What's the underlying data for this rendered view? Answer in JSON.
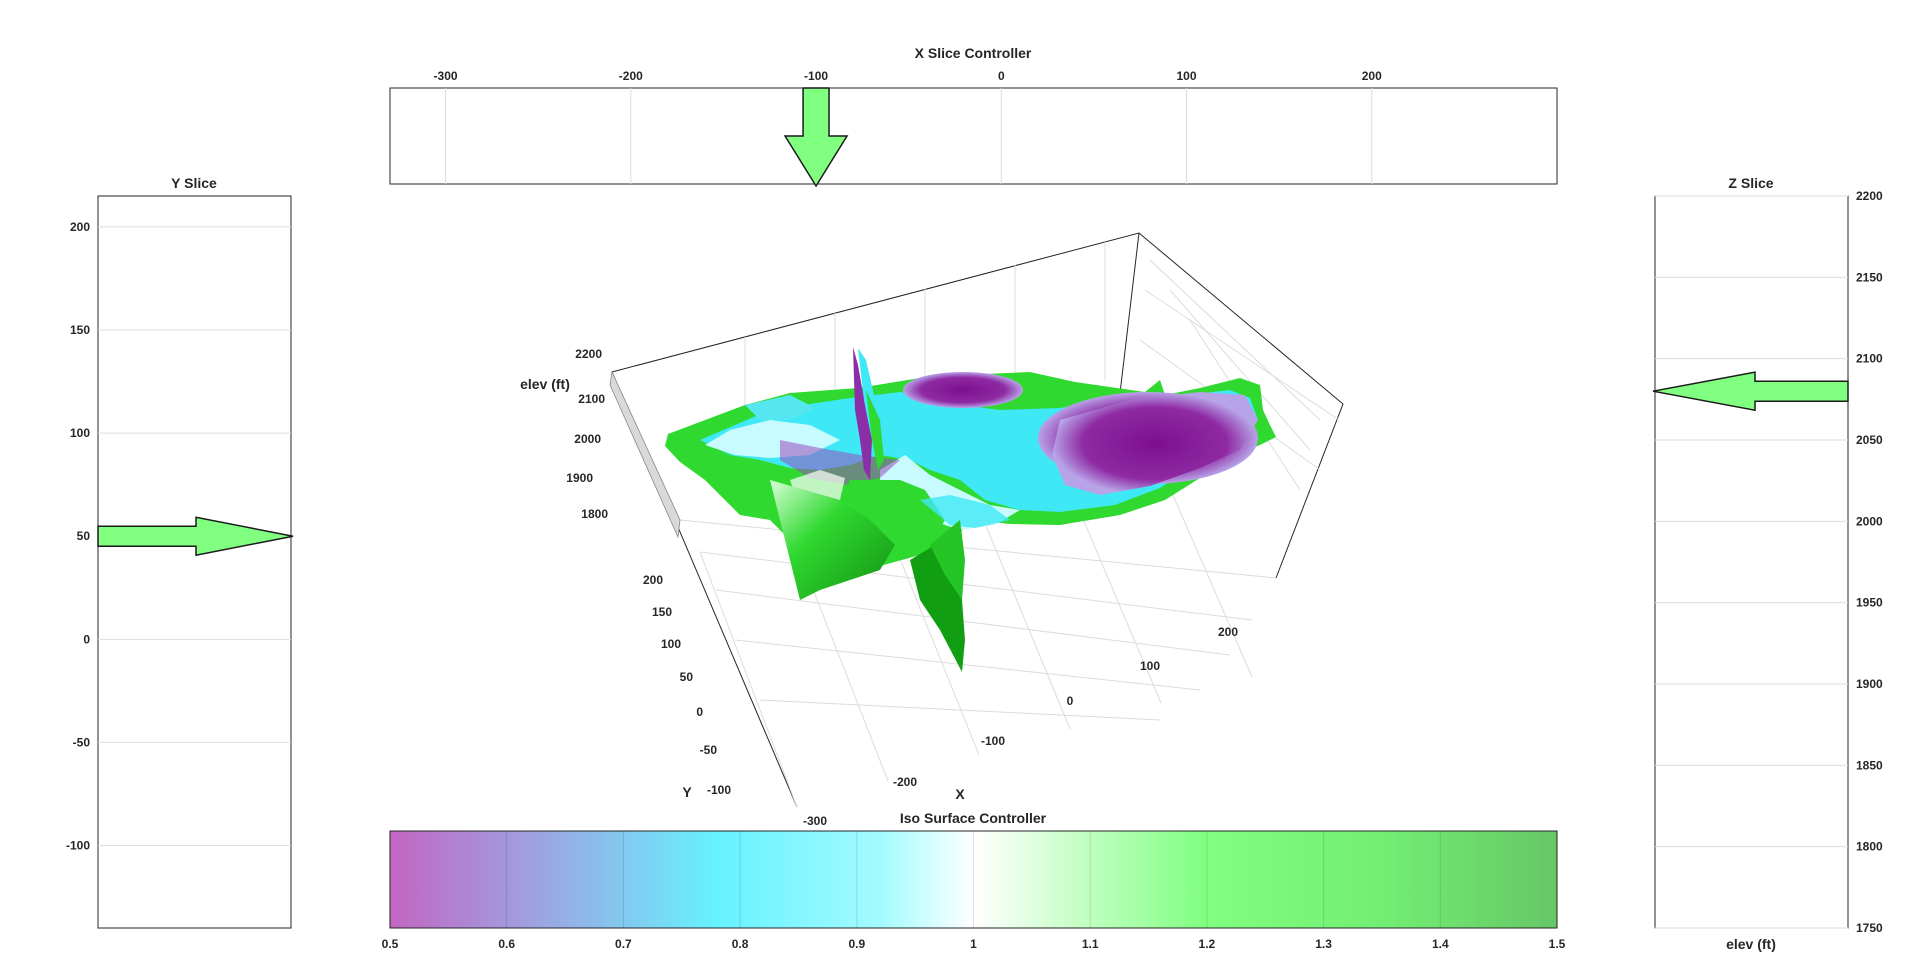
{
  "controllers": {
    "x_slice": {
      "title": "X Slice Controller",
      "ticks": [
        -300,
        -200,
        -100,
        0,
        100,
        200
      ],
      "xlim": [
        -330,
        300
      ],
      "value": -100
    },
    "y_slice": {
      "title": "Y Slice",
      "ticks": [
        200,
        150,
        100,
        50,
        0,
        -50,
        -100
      ],
      "ylim": [
        -140,
        215
      ],
      "value": 50
    },
    "z_slice": {
      "title": "Z Slice",
      "ylabel": "elev (ft)",
      "ticks": [
        2200,
        2150,
        2100,
        2050,
        2000,
        1950,
        1900,
        1850,
        1800,
        1750
      ],
      "ylim": [
        1750,
        2200
      ],
      "value": 2080
    },
    "iso": {
      "title": "Iso Surface Controller",
      "ticks": [
        "0.5",
        "0.6",
        "0.7",
        "0.8",
        "0.9",
        "1",
        "1.1",
        "1.2",
        "1.3",
        "1.4",
        "1.5"
      ],
      "xlim": [
        0.5,
        1.5
      ],
      "colormap": [
        "#c266c2",
        "#9fa0e0",
        "#66f2ff",
        "#a3fbff",
        "#ffffff",
        "#ccffcc",
        "#80ff80",
        "#73ee73",
        "#66c766"
      ]
    }
  },
  "chart_data": {
    "type": "volume-slice-3d",
    "xlabel": "X",
    "ylabel": "Y",
    "zlabel": "elev (ft)",
    "x_ticks": [
      "-300",
      "-200",
      "-100",
      "0",
      "100",
      "200"
    ],
    "y_ticks": [
      "200",
      "150",
      "100",
      "50",
      "0",
      "-50",
      "-100"
    ],
    "z_ticks": [
      "2200",
      "2100",
      "2000",
      "1900",
      "1800"
    ],
    "slices": {
      "x": -100,
      "y": 50,
      "z": 2080
    },
    "colors": {
      "purple": "#8a1a9a",
      "cyan": "#3fe8f5",
      "light_cyan": "#c8fbff",
      "green": "#28d728",
      "dark_green": "#129e12",
      "arrow": "#80ff80"
    }
  }
}
